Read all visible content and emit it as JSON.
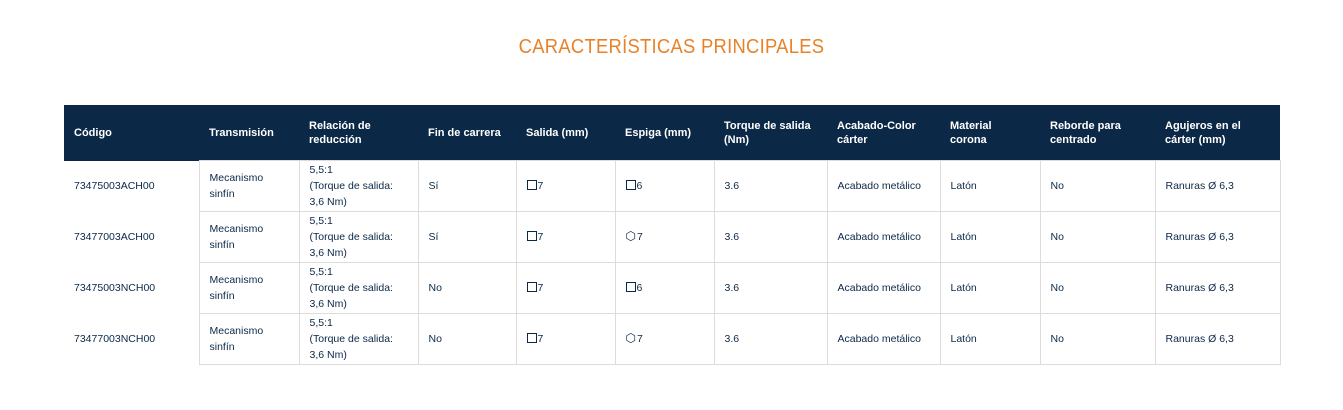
{
  "title": "CARACTERÍSTICAS PRINCIPALES",
  "headers": [
    "Código",
    "Transmisión",
    "Relación de reducción",
    "Fin de carrera",
    "Salida (mm)",
    "Espiga (mm)",
    "Torque de salida (Nm)",
    "Acabado-Color cárter",
    "Material corona",
    "Reborde para centrado",
    "Agujeros en el cárter (mm)"
  ],
  "rows": [
    {
      "code": "73475003ACH00",
      "transmision": "Mecanismo sinfín",
      "relacion": "5,5:1",
      "relacion_note": "(Torque de salida: 3,6 Nm)",
      "fin": "Sí",
      "salida_icon": "square-icon",
      "salida": "7",
      "espiga_icon": "square-icon",
      "espiga": "6",
      "torque": "3.6",
      "acabado": "Acabado metálico",
      "material": "Latón",
      "reborde": "No",
      "agujeros": "Ranuras Ø 6,3"
    },
    {
      "code": "73477003ACH00",
      "transmision": "Mecanismo sinfín",
      "relacion": "5,5:1",
      "relacion_note": "(Torque de salida: 3,6 Nm)",
      "fin": "Sí",
      "salida_icon": "square-icon",
      "salida": "7",
      "espiga_icon": "hexagon-icon",
      "espiga": "7",
      "torque": "3.6",
      "acabado": "Acabado metálico",
      "material": "Latón",
      "reborde": "No",
      "agujeros": "Ranuras Ø 6,3"
    },
    {
      "code": "73475003NCH00",
      "transmision": "Mecanismo sinfín",
      "relacion": "5,5:1",
      "relacion_note": "(Torque de salida: 3,6 Nm)",
      "fin": "No",
      "salida_icon": "square-icon",
      "salida": "7",
      "espiga_icon": "square-icon",
      "espiga": "6",
      "torque": "3.6",
      "acabado": "Acabado metálico",
      "material": "Latón",
      "reborde": "No",
      "agujeros": "Ranuras Ø 6,3"
    },
    {
      "code": "73477003NCH00",
      "transmision": "Mecanismo sinfín",
      "relacion": "5,5:1",
      "relacion_note": "(Torque de salida: 3,6 Nm)",
      "fin": "No",
      "salida_icon": "square-icon",
      "salida": "7",
      "espiga_icon": "hexagon-icon",
      "espiga": "7",
      "torque": "3.6",
      "acabado": "Acabado metálico",
      "material": "Latón",
      "reborde": "No",
      "agujeros": "Ranuras Ø 6,3"
    }
  ],
  "colors": {
    "title": "#e8822a",
    "header_bg": "#0b2847",
    "text": "#0b2847",
    "border": "#dcdcdc"
  }
}
